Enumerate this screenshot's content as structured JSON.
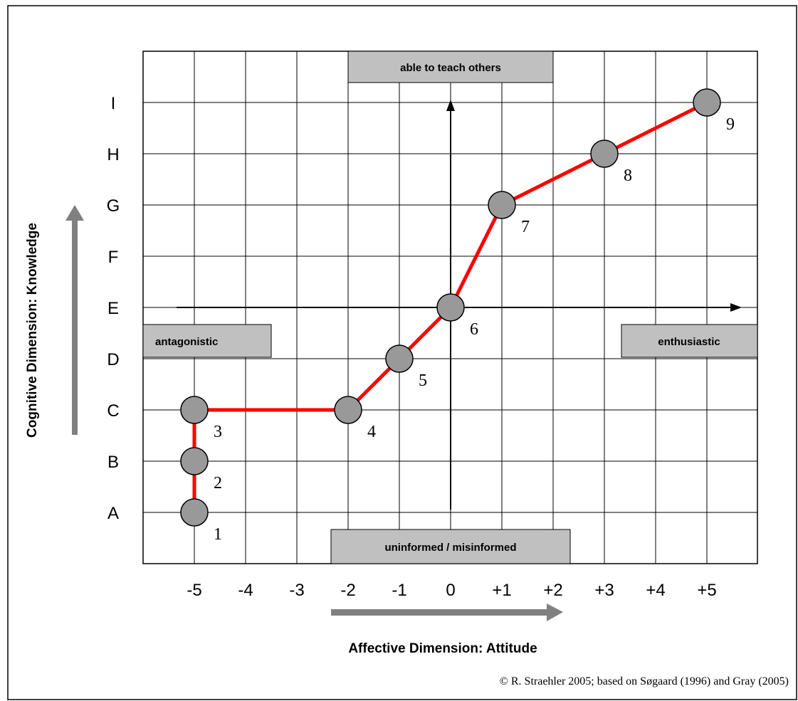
{
  "chart_data": {
    "type": "line",
    "title": "",
    "xlabel": "Affective Dimension: Attitude",
    "ylabel": "Cognitive Dimension: Knowledge",
    "x_ticks": [
      "-5",
      "-4",
      "-3",
      "-2",
      "-1",
      "0",
      "+1",
      "+2",
      "+3",
      "+4",
      "+5"
    ],
    "y_ticks": [
      "A",
      "B",
      "C",
      "D",
      "E",
      "F",
      "G",
      "H",
      "I"
    ],
    "xlim": [
      -6,
      6
    ],
    "ylim": [
      -0.5,
      9.5
    ],
    "grid": true,
    "series": [
      {
        "color": "#ff0000",
        "points": [
          {
            "label": "1",
            "x": -5,
            "y": "A"
          },
          {
            "label": "2",
            "x": -5,
            "y": "B"
          },
          {
            "label": "3",
            "x": -5,
            "y": "C"
          },
          {
            "label": "4",
            "x": -2,
            "y": "C"
          },
          {
            "label": "5",
            "x": -1,
            "y": "D"
          },
          {
            "label": "6",
            "x": 0,
            "y": "E"
          },
          {
            "label": "7",
            "x": 1,
            "y": "G"
          },
          {
            "label": "8",
            "x": 3,
            "y": "H"
          },
          {
            "label": "9",
            "x": 5,
            "y": "I"
          }
        ]
      }
    ],
    "annotations": {
      "top": "able to teach others",
      "bottom": "uninformed / misinformed",
      "left": "antagonistic",
      "right": "enthusiastic"
    },
    "copyright": "© R. Straehler 2005; based on Søgaard (1996) and Gray (2005)"
  },
  "colors": {
    "line": "#ff0000",
    "marker_fill": "#999999",
    "box_fill": "#c0c0c0",
    "arrow_gray": "#808080",
    "grid": "#000000"
  }
}
